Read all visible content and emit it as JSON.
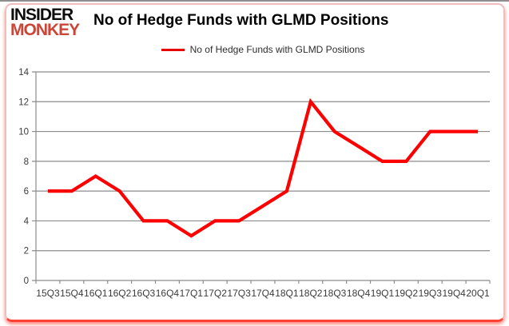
{
  "logo": {
    "line1": "INSIDER",
    "line2": "MONKEY"
  },
  "title": "No of Hedge Funds with GLMD Positions",
  "legend": {
    "label": "No of Hedge Funds with GLMD Positions"
  },
  "colors": {
    "series_red": "#fe0000",
    "legend_marker_red": "#e60000",
    "logo_red": "#c94638",
    "logo_black": "#0d0d0d",
    "grid_gray": "#8c8c8c",
    "axis_gray": "#8c8c8c",
    "tick_label_gray": "#3b3b3b",
    "frame_pink": "#f0bdba",
    "frame_bottom_red": "#ff4033"
  },
  "chart_data": {
    "type": "line",
    "title": "No of Hedge Funds with GLMD Positions",
    "categories": [
      "15Q3",
      "15Q4",
      "16Q1",
      "16Q2",
      "16Q3",
      "16Q4",
      "17Q1",
      "17Q2",
      "17Q3",
      "17Q4",
      "18Q1",
      "18Q2",
      "18Q3",
      "18Q4",
      "19Q1",
      "19Q2",
      "19Q3",
      "19Q4",
      "20Q1"
    ],
    "series": [
      {
        "name": "No of Hedge Funds with GLMD Positions",
        "color": "#fe0000",
        "values": [
          6,
          6,
          7,
          6,
          4,
          4,
          3,
          4,
          4,
          5,
          6,
          12,
          10,
          9,
          8,
          8,
          10,
          10,
          10
        ]
      }
    ],
    "xlabel": "",
    "ylabel": "",
    "ylim": [
      0,
      14
    ],
    "ytick_interval": 2,
    "grid": "horizontal",
    "legend_position": "top-center"
  }
}
